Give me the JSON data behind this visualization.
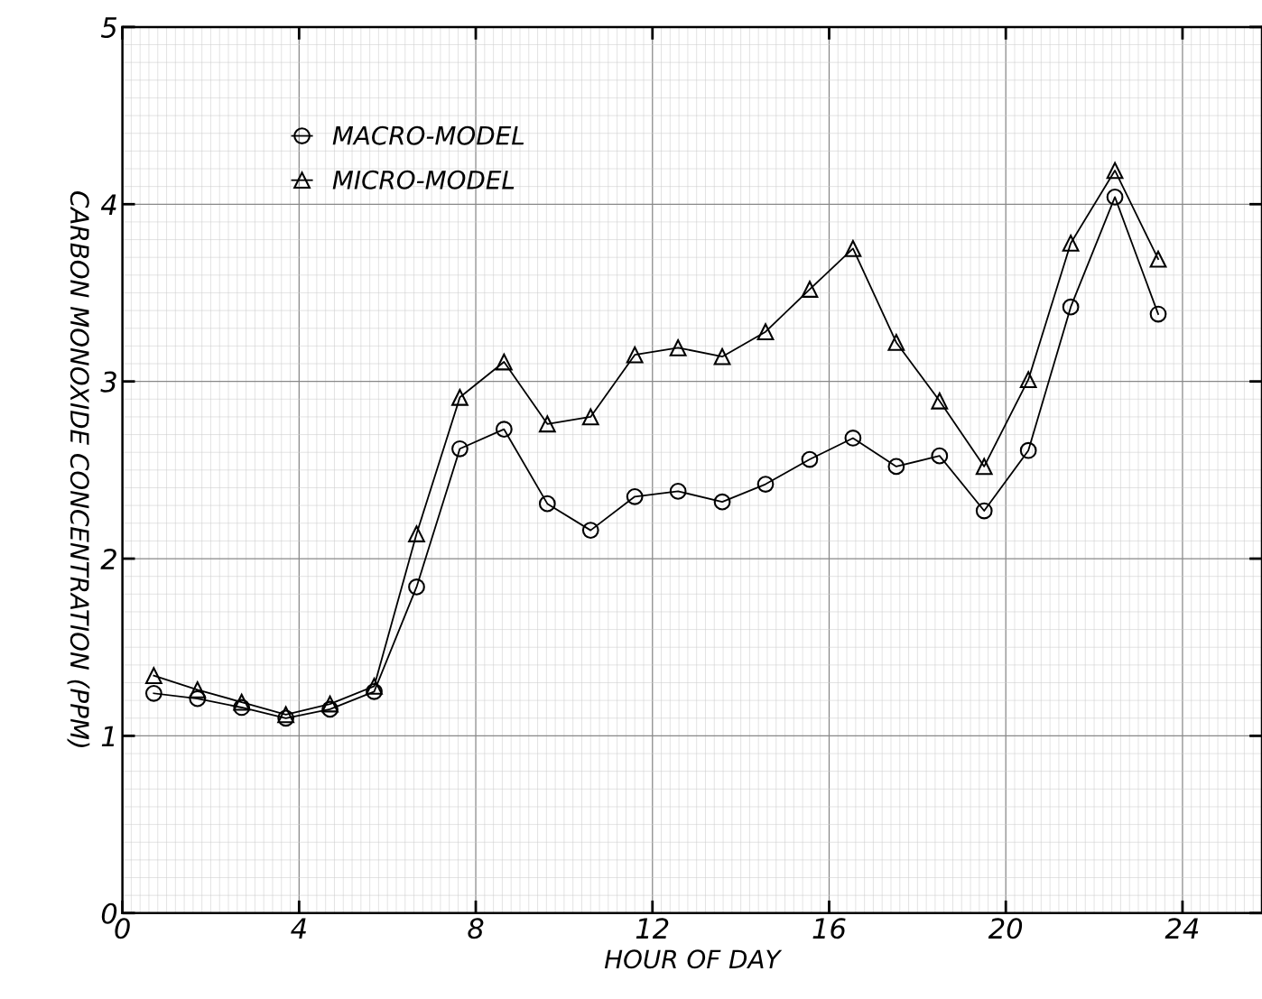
{
  "chart_data": {
    "type": "line",
    "xlabel": "HOUR OF DAY",
    "ylabel": "CARBON MONOXIDE CONCENTRATION (PPM)",
    "xlim": [
      0,
      25.8
    ],
    "ylim": [
      0,
      5
    ],
    "xticks": [
      0,
      4,
      8,
      12,
      16,
      20,
      24
    ],
    "yticks": [
      0,
      1,
      2,
      3,
      4,
      5
    ],
    "grid": true,
    "legend": "top left",
    "line_style": "solid",
    "series": [
      {
        "name": "MACRO-MODEL",
        "color": "#000000",
        "marker": "circle",
        "x": [
          0.71,
          1.7,
          2.7,
          3.7,
          4.7,
          5.7,
          6.66,
          7.64,
          8.64,
          9.62,
          10.6,
          11.6,
          12.58,
          13.58,
          14.56,
          15.56,
          16.54,
          17.52,
          18.5,
          19.51,
          20.51,
          21.47,
          22.47,
          23.45
        ],
        "values": [
          1.24,
          1.21,
          1.16,
          1.1,
          1.15,
          1.25,
          1.84,
          2.62,
          2.73,
          2.31,
          2.16,
          2.35,
          2.38,
          2.32,
          2.42,
          2.56,
          2.68,
          2.52,
          2.58,
          2.27,
          2.61,
          3.42,
          4.04,
          3.38
        ]
      },
      {
        "name": "MICRO-MODEL",
        "color": "#000000",
        "marker": "triangle",
        "x": [
          0.71,
          1.7,
          2.7,
          3.7,
          4.7,
          5.7,
          6.66,
          7.64,
          8.64,
          9.62,
          10.6,
          11.6,
          12.58,
          13.58,
          14.56,
          15.56,
          16.54,
          17.52,
          18.5,
          19.51,
          20.51,
          21.47,
          22.47,
          23.45
        ],
        "values": [
          1.34,
          1.26,
          1.19,
          1.12,
          1.18,
          1.28,
          2.14,
          2.91,
          3.11,
          2.76,
          2.8,
          3.15,
          3.19,
          3.14,
          3.28,
          3.52,
          3.75,
          3.22,
          2.89,
          2.52,
          3.01,
          3.78,
          4.19,
          3.69
        ]
      }
    ]
  }
}
